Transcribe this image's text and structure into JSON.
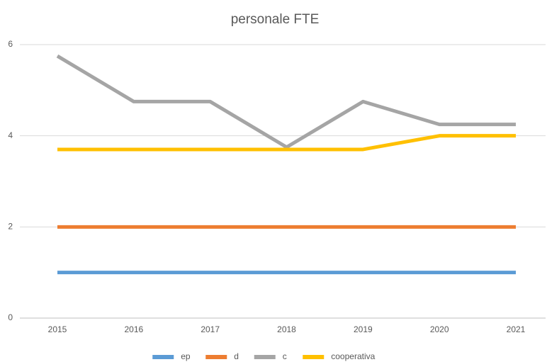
{
  "chart_data": {
    "type": "line",
    "title": "personale FTE",
    "categories": [
      "2015",
      "2016",
      "2017",
      "2018",
      "2019",
      "2020",
      "2021"
    ],
    "series": [
      {
        "name": "ep",
        "color": "#5b9bd5",
        "values": [
          1,
          1,
          1,
          1,
          1,
          1,
          1
        ]
      },
      {
        "name": "d",
        "color": "#ed7d31",
        "values": [
          2,
          2,
          2,
          2,
          2,
          2,
          2
        ]
      },
      {
        "name": "c",
        "color": "#a5a5a5",
        "values": [
          5.75,
          4.75,
          4.75,
          3.75,
          4.75,
          4.25,
          4.25
        ]
      },
      {
        "name": "cooperativa",
        "color": "#ffc000",
        "values": [
          3.7,
          3.7,
          3.7,
          3.7,
          3.7,
          4.0,
          4.0
        ]
      }
    ],
    "ylim": [
      0,
      6
    ],
    "yticks": [
      0,
      2,
      4,
      6
    ],
    "grid": true,
    "legend": "bottom"
  }
}
